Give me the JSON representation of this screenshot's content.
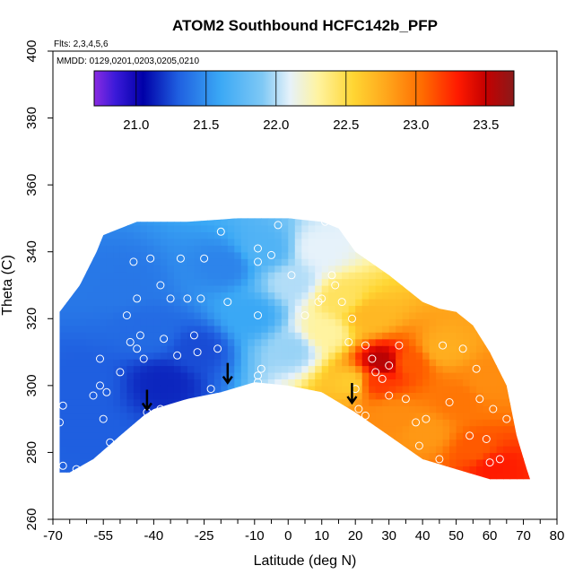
{
  "chart_data": {
    "type": "heatmap",
    "title": "ATOM2 Southbound HCFC142b_PFP",
    "subtitle_flights": "Flts: 2,3,4,5,6",
    "subtitle_dates": "MMDD: 0129,0201,0203,0205,0210",
    "xlabel": "Latitude (deg N)",
    "ylabel": "Theta (C)",
    "xlim": [
      -70,
      80
    ],
    "ylim": [
      260,
      400
    ],
    "x_ticks": [
      -70,
      -55,
      -40,
      -25,
      -10,
      0,
      10,
      20,
      30,
      40,
      50,
      60,
      70,
      80
    ],
    "x_minor_ticks": [
      -65,
      -60,
      -50,
      -45,
      -35,
      -30,
      -20,
      -15,
      -5,
      5,
      15,
      25,
      35,
      45,
      55,
      65,
      75
    ],
    "y_ticks": [
      260,
      280,
      300,
      320,
      340,
      360,
      380,
      400
    ],
    "colorbar": {
      "range": [
        20.7,
        23.7
      ],
      "ticks": [
        21.0,
        21.5,
        22.0,
        22.5,
        23.0,
        23.5
      ],
      "divisions": [
        21.0,
        21.5,
        22.0,
        22.5,
        23.0,
        23.5
      ],
      "stops": [
        {
          "v": 20.7,
          "c": "#8a2be2"
        },
        {
          "v": 20.85,
          "c": "#3b1ad9"
        },
        {
          "v": 21.05,
          "c": "#0000a8"
        },
        {
          "v": 21.3,
          "c": "#1f5fe0"
        },
        {
          "v": 21.6,
          "c": "#3aa8f5"
        },
        {
          "v": 21.9,
          "c": "#7ec8f5"
        },
        {
          "v": 22.1,
          "c": "#e6f2fa"
        },
        {
          "v": 22.3,
          "c": "#fff3a0"
        },
        {
          "v": 22.55,
          "c": "#ffd633"
        },
        {
          "v": 22.8,
          "c": "#ffa41a"
        },
        {
          "v": 23.05,
          "c": "#ff6a00"
        },
        {
          "v": 23.3,
          "c": "#ff1a00"
        },
        {
          "v": 23.5,
          "c": "#c40000"
        },
        {
          "v": 23.7,
          "c": "#8b1a1a"
        }
      ]
    },
    "domain_top": [
      [
        -68,
        322
      ],
      [
        -62,
        330
      ],
      [
        -57,
        340
      ],
      [
        -55,
        345
      ],
      [
        -45,
        349
      ],
      [
        -30,
        349
      ],
      [
        -15,
        350
      ],
      [
        -5,
        350
      ],
      [
        0,
        350
      ],
      [
        10,
        349
      ],
      [
        15,
        347
      ],
      [
        20,
        340
      ],
      [
        30,
        333
      ],
      [
        40,
        325
      ],
      [
        45,
        323
      ],
      [
        50,
        322
      ],
      [
        55,
        318
      ],
      [
        60,
        310
      ],
      [
        65,
        300
      ],
      [
        68,
        285
      ],
      [
        71,
        275
      ],
      [
        72,
        272
      ]
    ],
    "domain_bottom": [
      [
        72,
        272
      ],
      [
        60,
        272
      ],
      [
        50,
        275
      ],
      [
        40,
        278
      ],
      [
        30,
        285
      ],
      [
        20,
        292
      ],
      [
        15,
        295
      ],
      [
        10,
        298
      ],
      [
        0,
        300
      ],
      [
        -10,
        301
      ],
      [
        -20,
        298
      ],
      [
        -30,
        296
      ],
      [
        -40,
        293
      ],
      [
        -43,
        291
      ],
      [
        -50,
        285
      ],
      [
        -58,
        278
      ],
      [
        -65,
        274
      ],
      [
        -68,
        274
      ]
    ],
    "field_centers": [
      {
        "lat": -62,
        "theta": 300,
        "value": 21.3
      },
      {
        "lat": -60,
        "theta": 285,
        "value": 21.3
      },
      {
        "lat": -50,
        "theta": 330,
        "value": 21.4
      },
      {
        "lat": -42,
        "theta": 315,
        "value": 21.35
      },
      {
        "lat": -38,
        "theta": 300,
        "value": 21.15
      },
      {
        "lat": -28,
        "theta": 310,
        "value": 21.25
      },
      {
        "lat": -20,
        "theta": 335,
        "value": 21.45
      },
      {
        "lat": -12,
        "theta": 320,
        "value": 21.6
      },
      {
        "lat": -8,
        "theta": 340,
        "value": 21.7
      },
      {
        "lat": 0,
        "theta": 330,
        "value": 22.0
      },
      {
        "lat": 0,
        "theta": 310,
        "value": 21.95
      },
      {
        "lat": 8,
        "theta": 340,
        "value": 22.1
      },
      {
        "lat": 10,
        "theta": 315,
        "value": 22.3
      },
      {
        "lat": 15,
        "theta": 325,
        "value": 22.45
      },
      {
        "lat": 18,
        "theta": 300,
        "value": 22.6
      },
      {
        "lat": 23,
        "theta": 320,
        "value": 22.7
      },
      {
        "lat": 25,
        "theta": 300,
        "value": 23.2
      },
      {
        "lat": 27,
        "theta": 306,
        "value": 23.55
      },
      {
        "lat": 30,
        "theta": 290,
        "value": 22.9
      },
      {
        "lat": 35,
        "theta": 306,
        "value": 23.1
      },
      {
        "lat": 40,
        "theta": 285,
        "value": 22.85
      },
      {
        "lat": 45,
        "theta": 310,
        "value": 22.75
      },
      {
        "lat": 50,
        "theta": 295,
        "value": 23.0
      },
      {
        "lat": 55,
        "theta": 280,
        "value": 23.1
      },
      {
        "lat": 60,
        "theta": 275,
        "value": 23.3
      },
      {
        "lat": 58,
        "theta": 300,
        "value": 22.9
      }
    ],
    "observations": [
      [
        -68,
        289
      ],
      [
        -67,
        294
      ],
      [
        -67,
        276
      ],
      [
        -63,
        275
      ],
      [
        -58,
        297
      ],
      [
        -56,
        308
      ],
      [
        -56,
        300
      ],
      [
        -55,
        290
      ],
      [
        -54,
        298
      ],
      [
        -53,
        283
      ],
      [
        -50,
        304
      ],
      [
        -48,
        321
      ],
      [
        -47,
        313
      ],
      [
        -46,
        337
      ],
      [
        -45,
        326
      ],
      [
        -45,
        311
      ],
      [
        -44,
        315
      ],
      [
        -43,
        308
      ],
      [
        -42,
        292
      ],
      [
        -41,
        338
      ],
      [
        -38,
        330
      ],
      [
        -38,
        293
      ],
      [
        -37,
        314
      ],
      [
        -35,
        326
      ],
      [
        -33,
        309
      ],
      [
        -32,
        338
      ],
      [
        -30,
        326
      ],
      [
        -28,
        315
      ],
      [
        -28,
        295
      ],
      [
        -27,
        310
      ],
      [
        -26,
        326
      ],
      [
        -25,
        338
      ],
      [
        -23,
        299
      ],
      [
        -21,
        311
      ],
      [
        -20,
        346
      ],
      [
        -18,
        325
      ],
      [
        -9,
        341
      ],
      [
        -9,
        337
      ],
      [
        -9,
        321
      ],
      [
        -9,
        303
      ],
      [
        -9,
        301
      ],
      [
        -8,
        305
      ],
      [
        -5,
        339
      ],
      [
        -3,
        348
      ],
      [
        1,
        333
      ],
      [
        5,
        321
      ],
      [
        9,
        325
      ],
      [
        10,
        326
      ],
      [
        11,
        349
      ],
      [
        13,
        333
      ],
      [
        14,
        330
      ],
      [
        16,
        325
      ],
      [
        18,
        313
      ],
      [
        19,
        320
      ],
      [
        20,
        299
      ],
      [
        21,
        293
      ],
      [
        23,
        291
      ],
      [
        23,
        312
      ],
      [
        25,
        308
      ],
      [
        26,
        304
      ],
      [
        28,
        302
      ],
      [
        30,
        297
      ],
      [
        30,
        306
      ],
      [
        33,
        312
      ],
      [
        35,
        296
      ],
      [
        38,
        289
      ],
      [
        39,
        282
      ],
      [
        41,
        290
      ],
      [
        45,
        278
      ],
      [
        46,
        312
      ],
      [
        48,
        295
      ],
      [
        52,
        311
      ],
      [
        54,
        285
      ],
      [
        56,
        305
      ],
      [
        57,
        296
      ],
      [
        59,
        284
      ],
      [
        60,
        277
      ],
      [
        61,
        293
      ],
      [
        63,
        278
      ],
      [
        65,
        290
      ]
    ],
    "arrows": [
      [
        -42,
        295
      ],
      [
        -18,
        303
      ],
      [
        19,
        297
      ]
    ]
  }
}
